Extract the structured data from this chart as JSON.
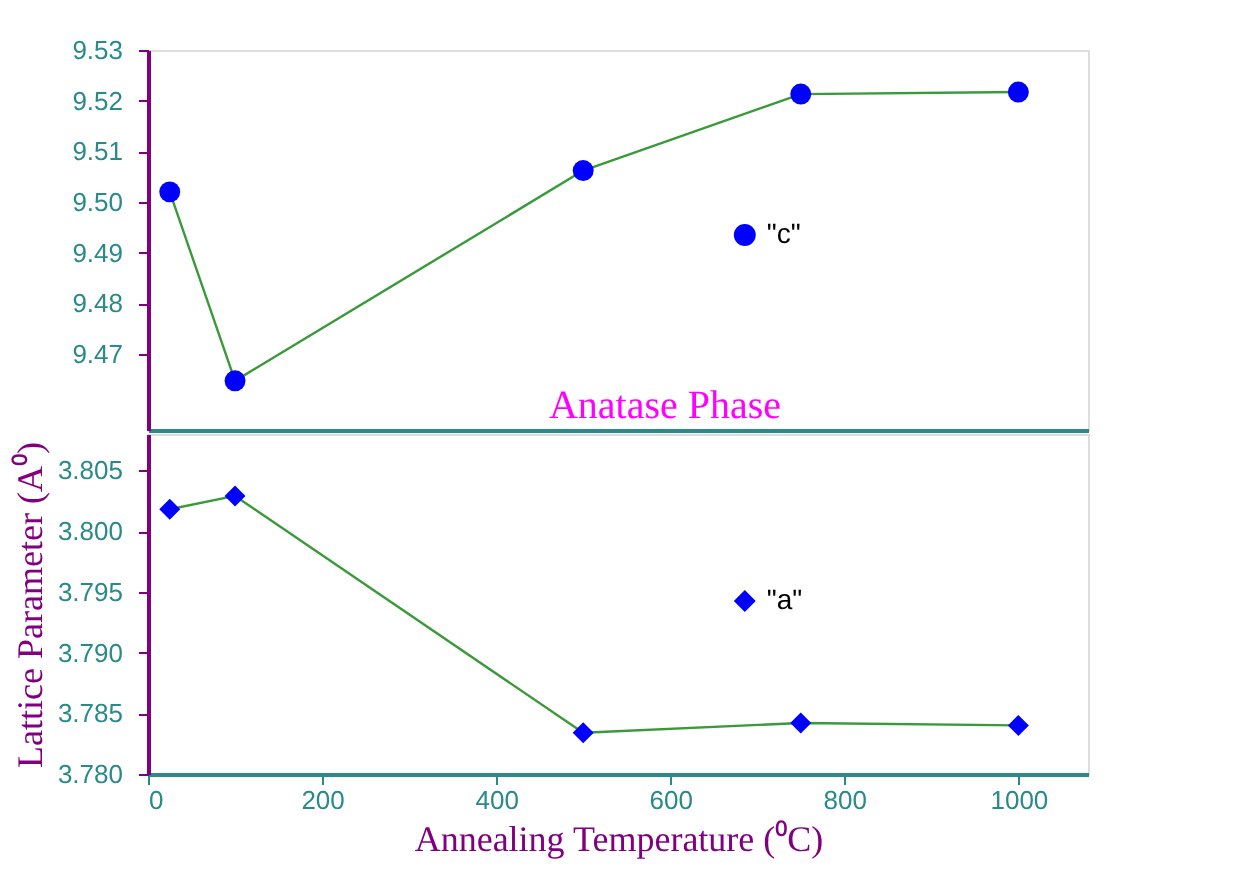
{
  "chart_data": [
    {
      "type": "line",
      "x": [
        25,
        100,
        500,
        750,
        1000
      ],
      "series": [
        {
          "name": "\"c\"",
          "color": "#0000ff",
          "values": [
            9.502,
            9.4647,
            9.5062,
            9.5213,
            9.5217
          ]
        }
      ],
      "xlim": [
        0,
        1080
      ],
      "ylim": [
        9.455,
        9.53
      ],
      "yticks": [
        9.47,
        9.48,
        9.49,
        {
          "value": 9.5,
          "label": "9.50"
        },
        9.51,
        9.52,
        9.53
      ],
      "tick_labels": "y",
      "marker": "circle",
      "legend": "right",
      "grid": false,
      "annotations": [
        "Anatase Phase"
      ]
    },
    {
      "type": "line",
      "x": [
        25,
        100,
        500,
        750,
        1000
      ],
      "series": [
        {
          "name": "\"a\"",
          "color": "#0000ff",
          "values": [
            3.8018,
            3.8029,
            3.7834,
            3.7842,
            3.784
          ]
        }
      ],
      "xlim": [
        0,
        1080
      ],
      "ylim": [
        3.78,
        3.808
      ],
      "yticks": [
        {
          "value": 3.78,
          "label": "3.780"
        },
        3.785,
        {
          "value": 3.79,
          "label": "3.790"
        },
        3.795,
        {
          "value": 3.8,
          "label": "3.800"
        },
        3.805
      ],
      "xticks": [
        0,
        200,
        400,
        600,
        800,
        1000
      ],
      "marker": "diamond",
      "legend": "right",
      "grid": false,
      "xlabel": "Annealing Temperature (⁰C)",
      "ylabel": "Lattice Parameter (A⁰)"
    }
  ]
}
